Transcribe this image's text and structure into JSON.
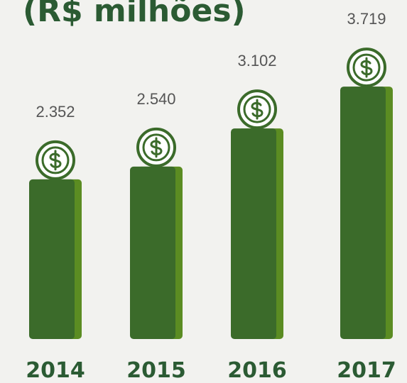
{
  "chart_data": {
    "type": "bar",
    "title": "(R$ milhões)",
    "categories": [
      "2014",
      "2015",
      "2016",
      "2017"
    ],
    "values": [
      2352,
      2540,
      3102,
      3719
    ],
    "value_labels": [
      "2.352",
      "2.540",
      "3.102",
      "3.719"
    ],
    "color": "#3b6b2a"
  }
}
